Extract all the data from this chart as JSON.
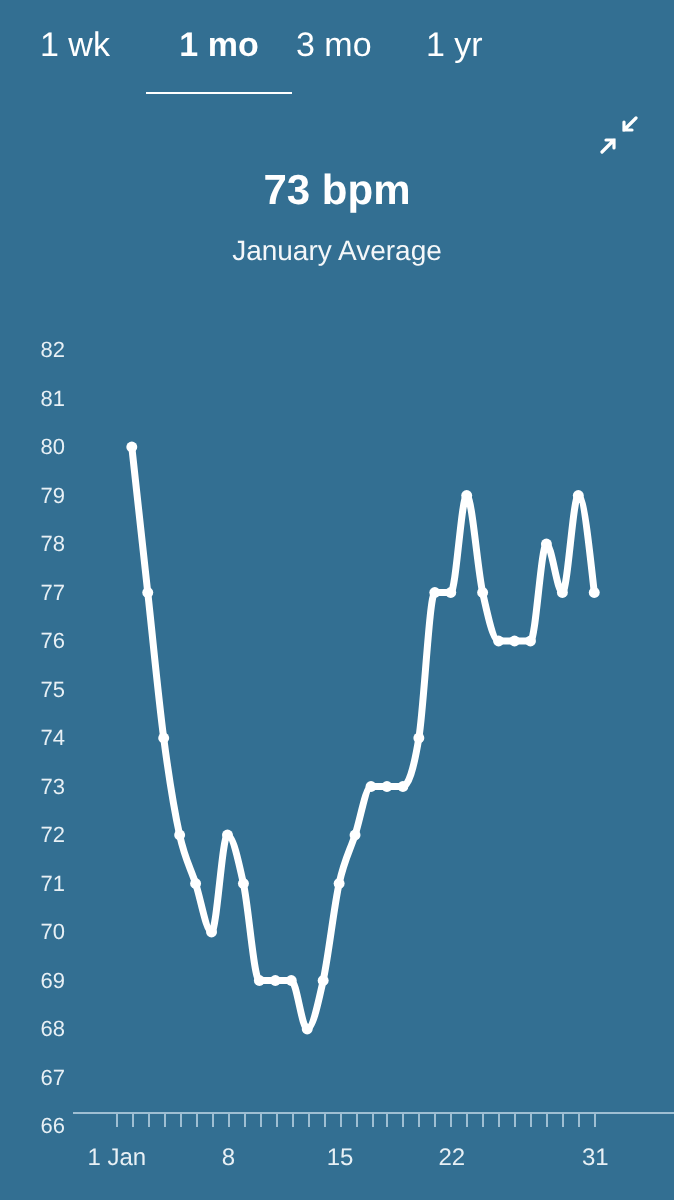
{
  "chart_data": {
    "type": "line",
    "title": "73 bpm",
    "subtitle": "January Average",
    "annotations": [
      "1 wk",
      "1 mo",
      "3 mo",
      "1 yr"
    ],
    "x": [
      2,
      3,
      4,
      5,
      6,
      7,
      8,
      9,
      10,
      11,
      12,
      13,
      14,
      15,
      16,
      17,
      18,
      19,
      20,
      21,
      22,
      23,
      24,
      25,
      26,
      27,
      28,
      29,
      30,
      31
    ],
    "series": [
      {
        "color": "#ffffff",
        "values": [
          80,
          77,
          74,
          72,
          71,
          70,
          72,
          71,
          69,
          69,
          69,
          68,
          69,
          71,
          72,
          73,
          73,
          73,
          74,
          77,
          77,
          79,
          77,
          76,
          76,
          76,
          78,
          77,
          79,
          77
        ]
      }
    ],
    "xlim": [
      -1.75,
      36
    ],
    "xticks": [
      {
        "value": 1,
        "label": "1 Jan"
      },
      {
        "value": 2,
        "label": null
      },
      {
        "value": 3,
        "label": null
      },
      {
        "value": 4,
        "label": null
      },
      {
        "value": 5,
        "label": null
      },
      {
        "value": 6,
        "label": null
      },
      {
        "value": 7,
        "label": null
      },
      {
        "value": 8,
        "label": "8"
      },
      {
        "value": 9,
        "label": null
      },
      {
        "value": 10,
        "label": null
      },
      {
        "value": 11,
        "label": null
      },
      {
        "value": 12,
        "label": null
      },
      {
        "value": 13,
        "label": null
      },
      {
        "value": 14,
        "label": null
      },
      {
        "value": 15,
        "label": "15"
      },
      {
        "value": 16,
        "label": null
      },
      {
        "value": 17,
        "label": null
      },
      {
        "value": 18,
        "label": null
      },
      {
        "value": 19,
        "label": null
      },
      {
        "value": 20,
        "label": null
      },
      {
        "value": 21,
        "label": null
      },
      {
        "value": 22,
        "label": "22"
      },
      {
        "value": 23,
        "label": null
      },
      {
        "value": 24,
        "label": null
      },
      {
        "value": 25,
        "label": null
      },
      {
        "value": 26,
        "label": null
      },
      {
        "value": 27,
        "label": null
      },
      {
        "value": 28,
        "label": null
      },
      {
        "value": 29,
        "label": null
      },
      {
        "value": 30,
        "label": null
      },
      {
        "value": 31,
        "label": "31"
      }
    ],
    "ylim": [
      66,
      82
    ],
    "yticks": [
      66,
      67,
      68,
      69,
      70,
      71,
      72,
      73,
      74,
      75,
      76,
      77,
      78,
      79,
      80,
      81,
      82
    ],
    "grid": false,
    "marker": "circle",
    "line_style": "solid"
  }
}
